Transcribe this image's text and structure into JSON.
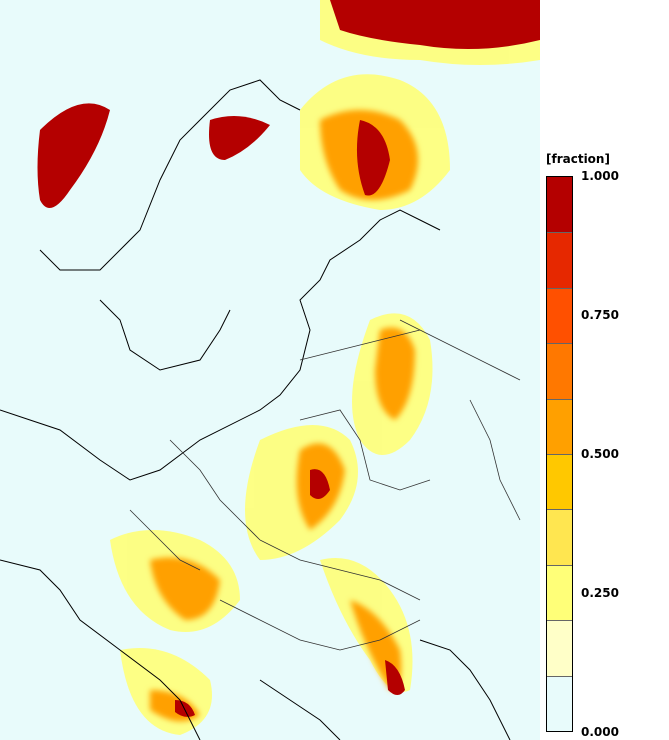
{
  "legend": {
    "unit": "[fraction]",
    "tick_labels": [
      "1.000",
      "0.750",
      "0.500",
      "0.250",
      "0.000"
    ],
    "bins": [
      "#e8fbfb",
      "#ffffc8",
      "#ffff78",
      "#ffe650",
      "#ffc800",
      "#ffa000",
      "#ff7800",
      "#ff5000",
      "#e62800",
      "#b40000"
    ]
  }
}
